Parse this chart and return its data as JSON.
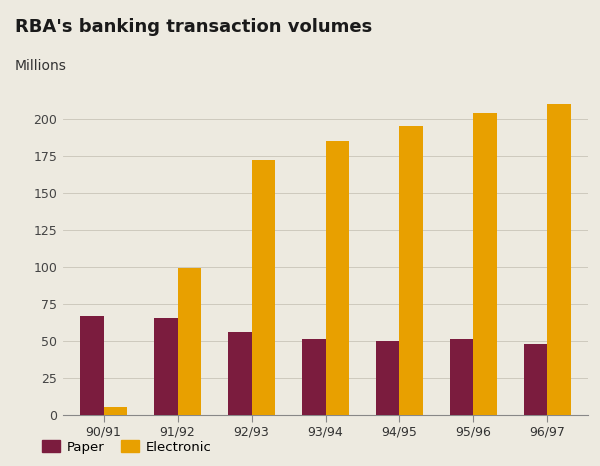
{
  "title": "RBA's banking transaction volumes",
  "subtitle": "Millions",
  "categories": [
    "90/91",
    "91/92",
    "92/93",
    "93/94",
    "94/95",
    "95/96",
    "96/97"
  ],
  "paper": [
    67,
    65,
    56,
    51,
    50,
    51,
    48
  ],
  "electronic": [
    5,
    99,
    172,
    185,
    195,
    204,
    210
  ],
  "paper_color": "#7B1C3E",
  "electronic_color": "#E8A000",
  "background_chart": "#EDEAE0",
  "background_header": "#C8DDB0",
  "ylim": [
    0,
    225
  ],
  "yticks": [
    0,
    25,
    50,
    75,
    100,
    125,
    150,
    175,
    200
  ],
  "legend_paper": "Paper",
  "legend_electronic": "Electronic",
  "title_fontsize": 13,
  "subtitle_fontsize": 10,
  "tick_fontsize": 9,
  "bar_width": 0.32
}
